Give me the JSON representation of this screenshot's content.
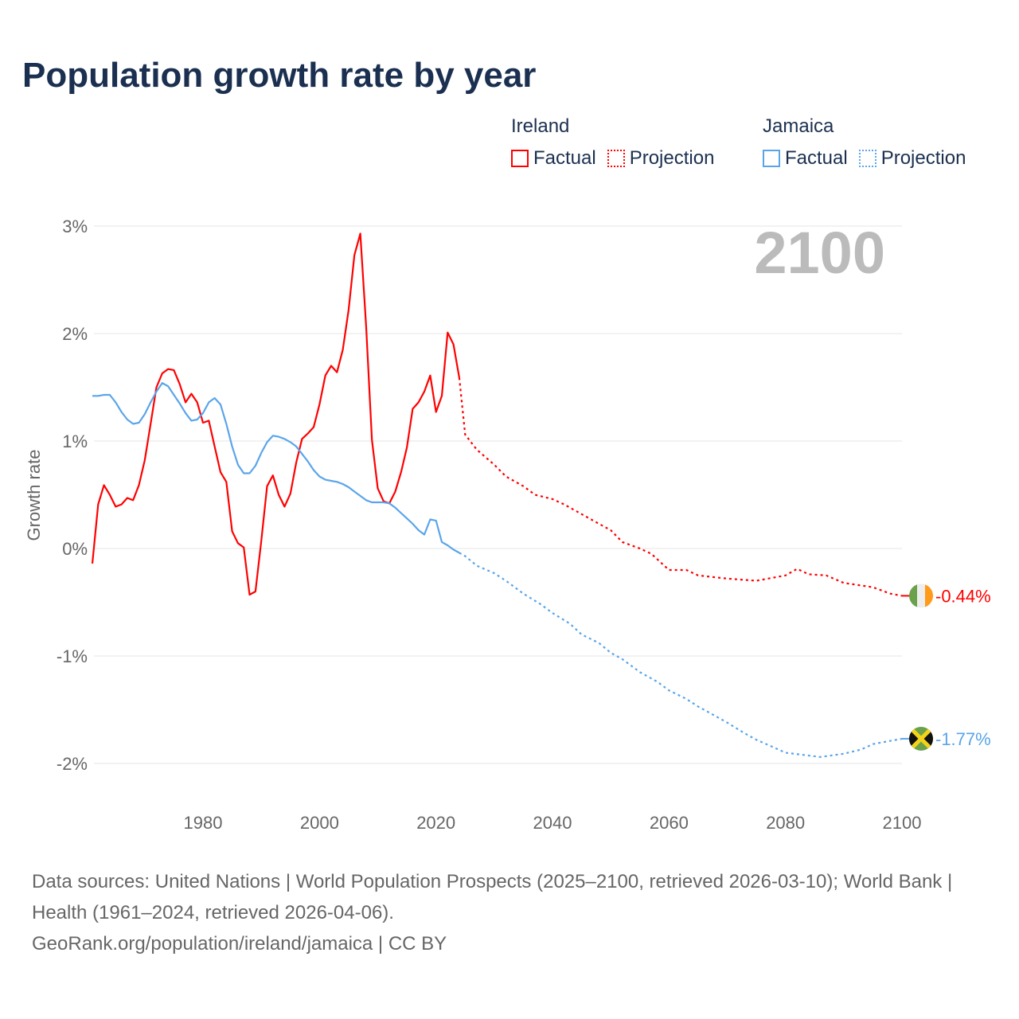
{
  "title": "Population growth rate by year",
  "legend": [
    {
      "name": "Ireland",
      "factual": "Factual",
      "projection": "Projection",
      "color": "#ff0000"
    },
    {
      "name": "Jamaica",
      "factual": "Factual",
      "projection": "Projection",
      "color": "#5aa5ea"
    }
  ],
  "footer": {
    "sources": "Data sources: United Nations | World Population Prospects (2025–2100, retrieved 2026-03-10); World Bank | Health (1961–2024, retrieved 2026-04-06).",
    "credit": "GeoRank.org/population/ireland/jamaica | CC BY"
  },
  "chart_data": {
    "type": "line",
    "title": "Population growth rate by year",
    "ylabel": "Growth rate",
    "xlabel": "",
    "year_label": "2100",
    "xlim": [
      1961,
      2100
    ],
    "ylim": [
      -2.2,
      3.1
    ],
    "x_ticks": [
      1980,
      2000,
      2020,
      2040,
      2060,
      2080,
      2100
    ],
    "y_ticks": [
      3,
      2,
      1,
      0,
      -1,
      -2
    ],
    "y_tick_labels": [
      "3%",
      "2%",
      "1%",
      "0%",
      "-1%",
      "-2%"
    ],
    "grid": true,
    "series": [
      {
        "name": "Ireland",
        "color": "#ff0000",
        "end_label": "-0.44%",
        "factual": [
          [
            1961,
            -0.14
          ],
          [
            1962,
            0.41
          ],
          [
            1963,
            0.59
          ],
          [
            1964,
            0.5
          ],
          [
            1965,
            0.39
          ],
          [
            1966,
            0.41
          ],
          [
            1967,
            0.47
          ],
          [
            1968,
            0.45
          ],
          [
            1969,
            0.59
          ],
          [
            1970,
            0.82
          ],
          [
            1971,
            1.16
          ],
          [
            1972,
            1.5
          ],
          [
            1973,
            1.63
          ],
          [
            1974,
            1.67
          ],
          [
            1975,
            1.66
          ],
          [
            1976,
            1.53
          ],
          [
            1977,
            1.36
          ],
          [
            1978,
            1.44
          ],
          [
            1979,
            1.36
          ],
          [
            1980,
            1.17
          ],
          [
            1981,
            1.19
          ],
          [
            1982,
            0.95
          ],
          [
            1983,
            0.71
          ],
          [
            1984,
            0.62
          ],
          [
            1985,
            0.16
          ],
          [
            1986,
            0.05
          ],
          [
            1987,
            0.01
          ],
          [
            1988,
            -0.43
          ],
          [
            1989,
            -0.4
          ],
          [
            1990,
            0.07
          ],
          [
            1991,
            0.58
          ],
          [
            1992,
            0.68
          ],
          [
            1993,
            0.5
          ],
          [
            1994,
            0.39
          ],
          [
            1995,
            0.51
          ],
          [
            1996,
            0.8
          ],
          [
            1997,
            1.02
          ],
          [
            1998,
            1.07
          ],
          [
            1999,
            1.13
          ],
          [
            2000,
            1.34
          ],
          [
            2001,
            1.61
          ],
          [
            2002,
            1.7
          ],
          [
            2003,
            1.64
          ],
          [
            2004,
            1.85
          ],
          [
            2005,
            2.22
          ],
          [
            2006,
            2.73
          ],
          [
            2007,
            2.93
          ],
          [
            2008,
            2.07
          ],
          [
            2009,
            1.01
          ],
          [
            2010,
            0.56
          ],
          [
            2011,
            0.44
          ],
          [
            2012,
            0.42
          ],
          [
            2013,
            0.53
          ],
          [
            2014,
            0.71
          ],
          [
            2015,
            0.94
          ],
          [
            2016,
            1.3
          ],
          [
            2017,
            1.36
          ],
          [
            2018,
            1.46
          ],
          [
            2019,
            1.61
          ],
          [
            2020,
            1.27
          ],
          [
            2021,
            1.42
          ],
          [
            2022,
            2.01
          ],
          [
            2023,
            1.9
          ],
          [
            2024,
            1.59
          ]
        ],
        "projection": [
          [
            2024,
            1.59
          ],
          [
            2025,
            1.06
          ],
          [
            2027,
            0.92
          ],
          [
            2030,
            0.78
          ],
          [
            2032,
            0.67
          ],
          [
            2035,
            0.58
          ],
          [
            2037,
            0.5
          ],
          [
            2040,
            0.46
          ],
          [
            2042,
            0.41
          ],
          [
            2045,
            0.32
          ],
          [
            2048,
            0.23
          ],
          [
            2050,
            0.17
          ],
          [
            2052,
            0.06
          ],
          [
            2055,
            0.0
          ],
          [
            2057,
            -0.05
          ],
          [
            2060,
            -0.2
          ],
          [
            2063,
            -0.2
          ],
          [
            2065,
            -0.25
          ],
          [
            2070,
            -0.28
          ],
          [
            2075,
            -0.3
          ],
          [
            2080,
            -0.25
          ],
          [
            2082,
            -0.19
          ],
          [
            2084,
            -0.24
          ],
          [
            2087,
            -0.25
          ],
          [
            2090,
            -0.32
          ],
          [
            2095,
            -0.36
          ],
          [
            2098,
            -0.42
          ],
          [
            2100,
            -0.44
          ]
        ]
      },
      {
        "name": "Jamaica",
        "color": "#5aa5ea",
        "end_label": "-1.77%",
        "factual": [
          [
            1961,
            1.42
          ],
          [
            1962,
            1.42
          ],
          [
            1963,
            1.43
          ],
          [
            1964,
            1.43
          ],
          [
            1965,
            1.36
          ],
          [
            1966,
            1.27
          ],
          [
            1967,
            1.2
          ],
          [
            1968,
            1.16
          ],
          [
            1969,
            1.17
          ],
          [
            1970,
            1.25
          ],
          [
            1971,
            1.36
          ],
          [
            1972,
            1.46
          ],
          [
            1973,
            1.54
          ],
          [
            1974,
            1.51
          ],
          [
            1975,
            1.43
          ],
          [
            1976,
            1.35
          ],
          [
            1977,
            1.26
          ],
          [
            1978,
            1.19
          ],
          [
            1979,
            1.2
          ],
          [
            1980,
            1.26
          ],
          [
            1981,
            1.36
          ],
          [
            1982,
            1.4
          ],
          [
            1983,
            1.34
          ],
          [
            1984,
            1.16
          ],
          [
            1985,
            0.95
          ],
          [
            1986,
            0.78
          ],
          [
            1987,
            0.7
          ],
          [
            1988,
            0.7
          ],
          [
            1989,
            0.77
          ],
          [
            1990,
            0.89
          ],
          [
            1991,
            0.99
          ],
          [
            1992,
            1.05
          ],
          [
            1993,
            1.04
          ],
          [
            1994,
            1.02
          ],
          [
            1995,
            0.99
          ],
          [
            1996,
            0.95
          ],
          [
            1997,
            0.88
          ],
          [
            1998,
            0.81
          ],
          [
            1999,
            0.73
          ],
          [
            2000,
            0.67
          ],
          [
            2001,
            0.64
          ],
          [
            2002,
            0.63
          ],
          [
            2003,
            0.62
          ],
          [
            2004,
            0.6
          ],
          [
            2005,
            0.57
          ],
          [
            2006,
            0.53
          ],
          [
            2007,
            0.49
          ],
          [
            2008,
            0.45
          ],
          [
            2009,
            0.43
          ],
          [
            2010,
            0.43
          ],
          [
            2011,
            0.43
          ],
          [
            2012,
            0.42
          ],
          [
            2013,
            0.38
          ],
          [
            2014,
            0.33
          ],
          [
            2015,
            0.28
          ],
          [
            2016,
            0.23
          ],
          [
            2017,
            0.17
          ],
          [
            2018,
            0.13
          ],
          [
            2019,
            0.27
          ],
          [
            2020,
            0.26
          ],
          [
            2021,
            0.06
          ],
          [
            2022,
            0.03
          ],
          [
            2023,
            -0.01
          ],
          [
            2024,
            -0.04
          ]
        ],
        "projection": [
          [
            2024,
            -0.04
          ],
          [
            2025,
            -0.07
          ],
          [
            2027,
            -0.16
          ],
          [
            2030,
            -0.23
          ],
          [
            2032,
            -0.3
          ],
          [
            2035,
            -0.42
          ],
          [
            2038,
            -0.52
          ],
          [
            2040,
            -0.6
          ],
          [
            2043,
            -0.7
          ],
          [
            2045,
            -0.8
          ],
          [
            2048,
            -0.88
          ],
          [
            2050,
            -0.97
          ],
          [
            2052,
            -1.03
          ],
          [
            2055,
            -1.15
          ],
          [
            2058,
            -1.24
          ],
          [
            2060,
            -1.32
          ],
          [
            2063,
            -1.4
          ],
          [
            2065,
            -1.47
          ],
          [
            2067,
            -1.53
          ],
          [
            2070,
            -1.62
          ],
          [
            2073,
            -1.72
          ],
          [
            2075,
            -1.78
          ],
          [
            2078,
            -1.85
          ],
          [
            2080,
            -1.9
          ],
          [
            2083,
            -1.92
          ],
          [
            2086,
            -1.94
          ],
          [
            2090,
            -1.91
          ],
          [
            2093,
            -1.87
          ],
          [
            2095,
            -1.82
          ],
          [
            2098,
            -1.79
          ],
          [
            2100,
            -1.77
          ]
        ]
      }
    ]
  }
}
